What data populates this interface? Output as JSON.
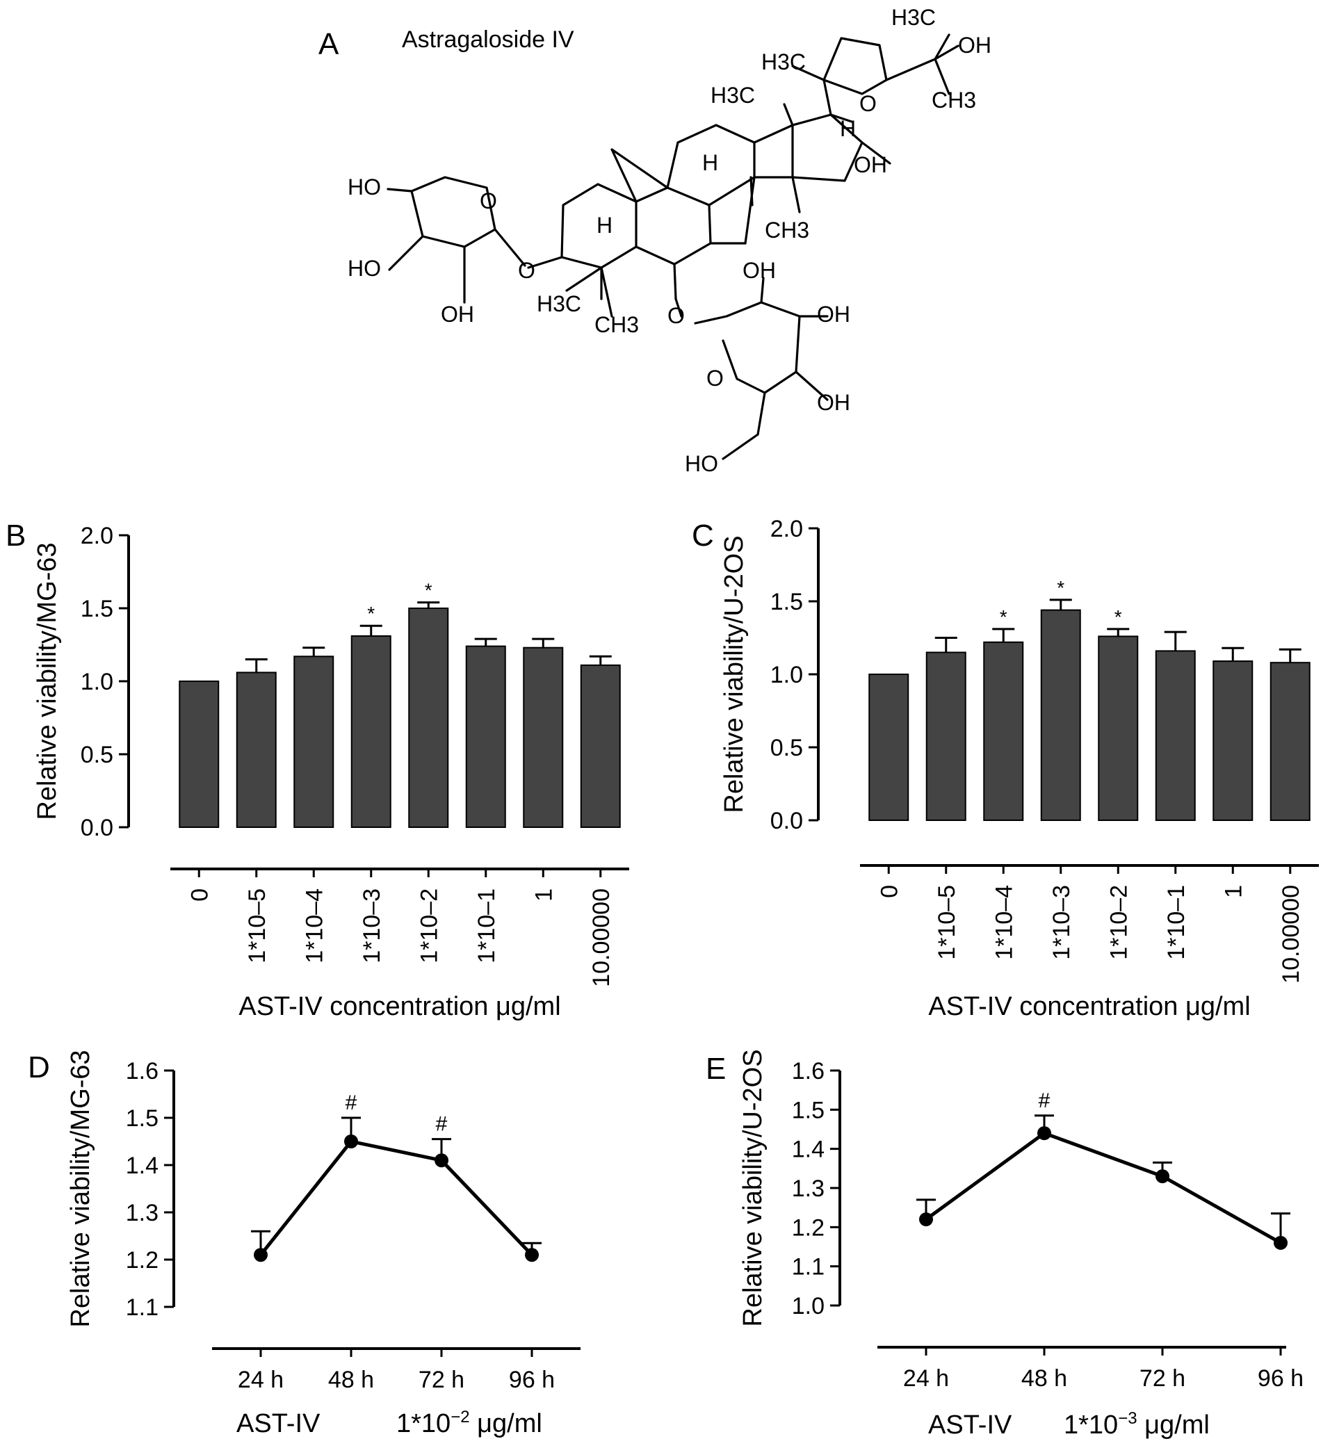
{
  "figure": {
    "panels": {
      "A": "A",
      "B": "B",
      "C": "C",
      "D": "D",
      "E": "E"
    },
    "molecule_name": "Astragaloside IV",
    "molecule_atom_labels": [
      "H3C",
      "OH",
      "H3C",
      "O",
      "CH3",
      "H3C",
      "H",
      "OH",
      "HO",
      "O",
      "H",
      "HO",
      "O",
      "H",
      "CH3",
      "OH",
      "OH",
      "H3C",
      "CH3",
      "O",
      "OH",
      "OH",
      "O",
      "OH",
      "HO"
    ]
  },
  "chart_data": [
    {
      "id": "B",
      "type": "bar",
      "title": "",
      "xlabel": "AST-IV concentration μg/ml",
      "ylabel": "Relative viability/MG-63",
      "categories": [
        "0",
        "1*10–5",
        "1*10–4",
        "1*10–3",
        "1*10–2",
        "1*10–1",
        "1",
        "10.00000"
      ],
      "values": [
        1.0,
        1.06,
        1.17,
        1.31,
        1.5,
        1.24,
        1.23,
        1.11
      ],
      "errors": [
        0.0,
        0.09,
        0.06,
        0.07,
        0.04,
        0.05,
        0.06,
        0.06
      ],
      "annotations": [
        "",
        "",
        "",
        "*",
        "*",
        "",
        "",
        ""
      ],
      "ylim": [
        0,
        2.0
      ],
      "yticks": [
        "0.0",
        "0.5",
        "1.0",
        "1.5",
        "2.0"
      ],
      "bar_color": "#444444",
      "grid": false
    },
    {
      "id": "C",
      "type": "bar",
      "title": "",
      "xlabel": "AST-IV concentration μg/ml",
      "ylabel": "Relative viability/U-2OS",
      "categories": [
        "0",
        "1*10–5",
        "1*10–4",
        "1*10–3",
        "1*10–2",
        "1*10–1",
        "1",
        "10.00000"
      ],
      "values": [
        1.0,
        1.15,
        1.22,
        1.44,
        1.26,
        1.16,
        1.09,
        1.08
      ],
      "errors": [
        0.0,
        0.1,
        0.09,
        0.07,
        0.05,
        0.13,
        0.09,
        0.09
      ],
      "annotations": [
        "",
        "",
        "*",
        "*",
        "*",
        "",
        "",
        ""
      ],
      "ylim": [
        0,
        2.0
      ],
      "yticks": [
        "0.0",
        "0.5",
        "1.0",
        "1.5",
        "2.0"
      ],
      "bar_color": "#444444",
      "grid": false
    },
    {
      "id": "D",
      "type": "line",
      "title": "",
      "xlabel_left": "AST-IV",
      "xlabel_right": "1*10",
      "xlabel_exp": "−2",
      "xlabel_unit": " μg/ml",
      "ylabel": "Relative viability/MG-63",
      "categories": [
        "24 h",
        "48 h",
        "72 h",
        "96 h"
      ],
      "values": [
        1.21,
        1.45,
        1.41,
        1.21
      ],
      "errors": [
        0.05,
        0.05,
        0.045,
        0.025
      ],
      "annotations": [
        "",
        "#",
        "#",
        ""
      ],
      "ylim": [
        1.1,
        1.6
      ],
      "yticks": [
        "1.1",
        "1.2",
        "1.3",
        "1.4",
        "1.5",
        "1.6"
      ],
      "grid": false
    },
    {
      "id": "E",
      "type": "line",
      "title": "",
      "xlabel_left": "AST-IV",
      "xlabel_right": "1*10",
      "xlabel_exp": "−3",
      "xlabel_unit": " μg/ml",
      "ylabel": "Relative viability/U-2OS",
      "categories": [
        "24 h",
        "48 h",
        "72 h",
        "96 h"
      ],
      "values": [
        1.22,
        1.44,
        1.33,
        1.16
      ],
      "errors": [
        0.05,
        0.045,
        0.035,
        0.075
      ],
      "annotations": [
        "",
        "#",
        "",
        ""
      ],
      "ylim": [
        1.0,
        1.6
      ],
      "yticks": [
        "1.0",
        "1.1",
        "1.2",
        "1.3",
        "1.4",
        "1.5",
        "1.6"
      ],
      "grid": false
    }
  ]
}
